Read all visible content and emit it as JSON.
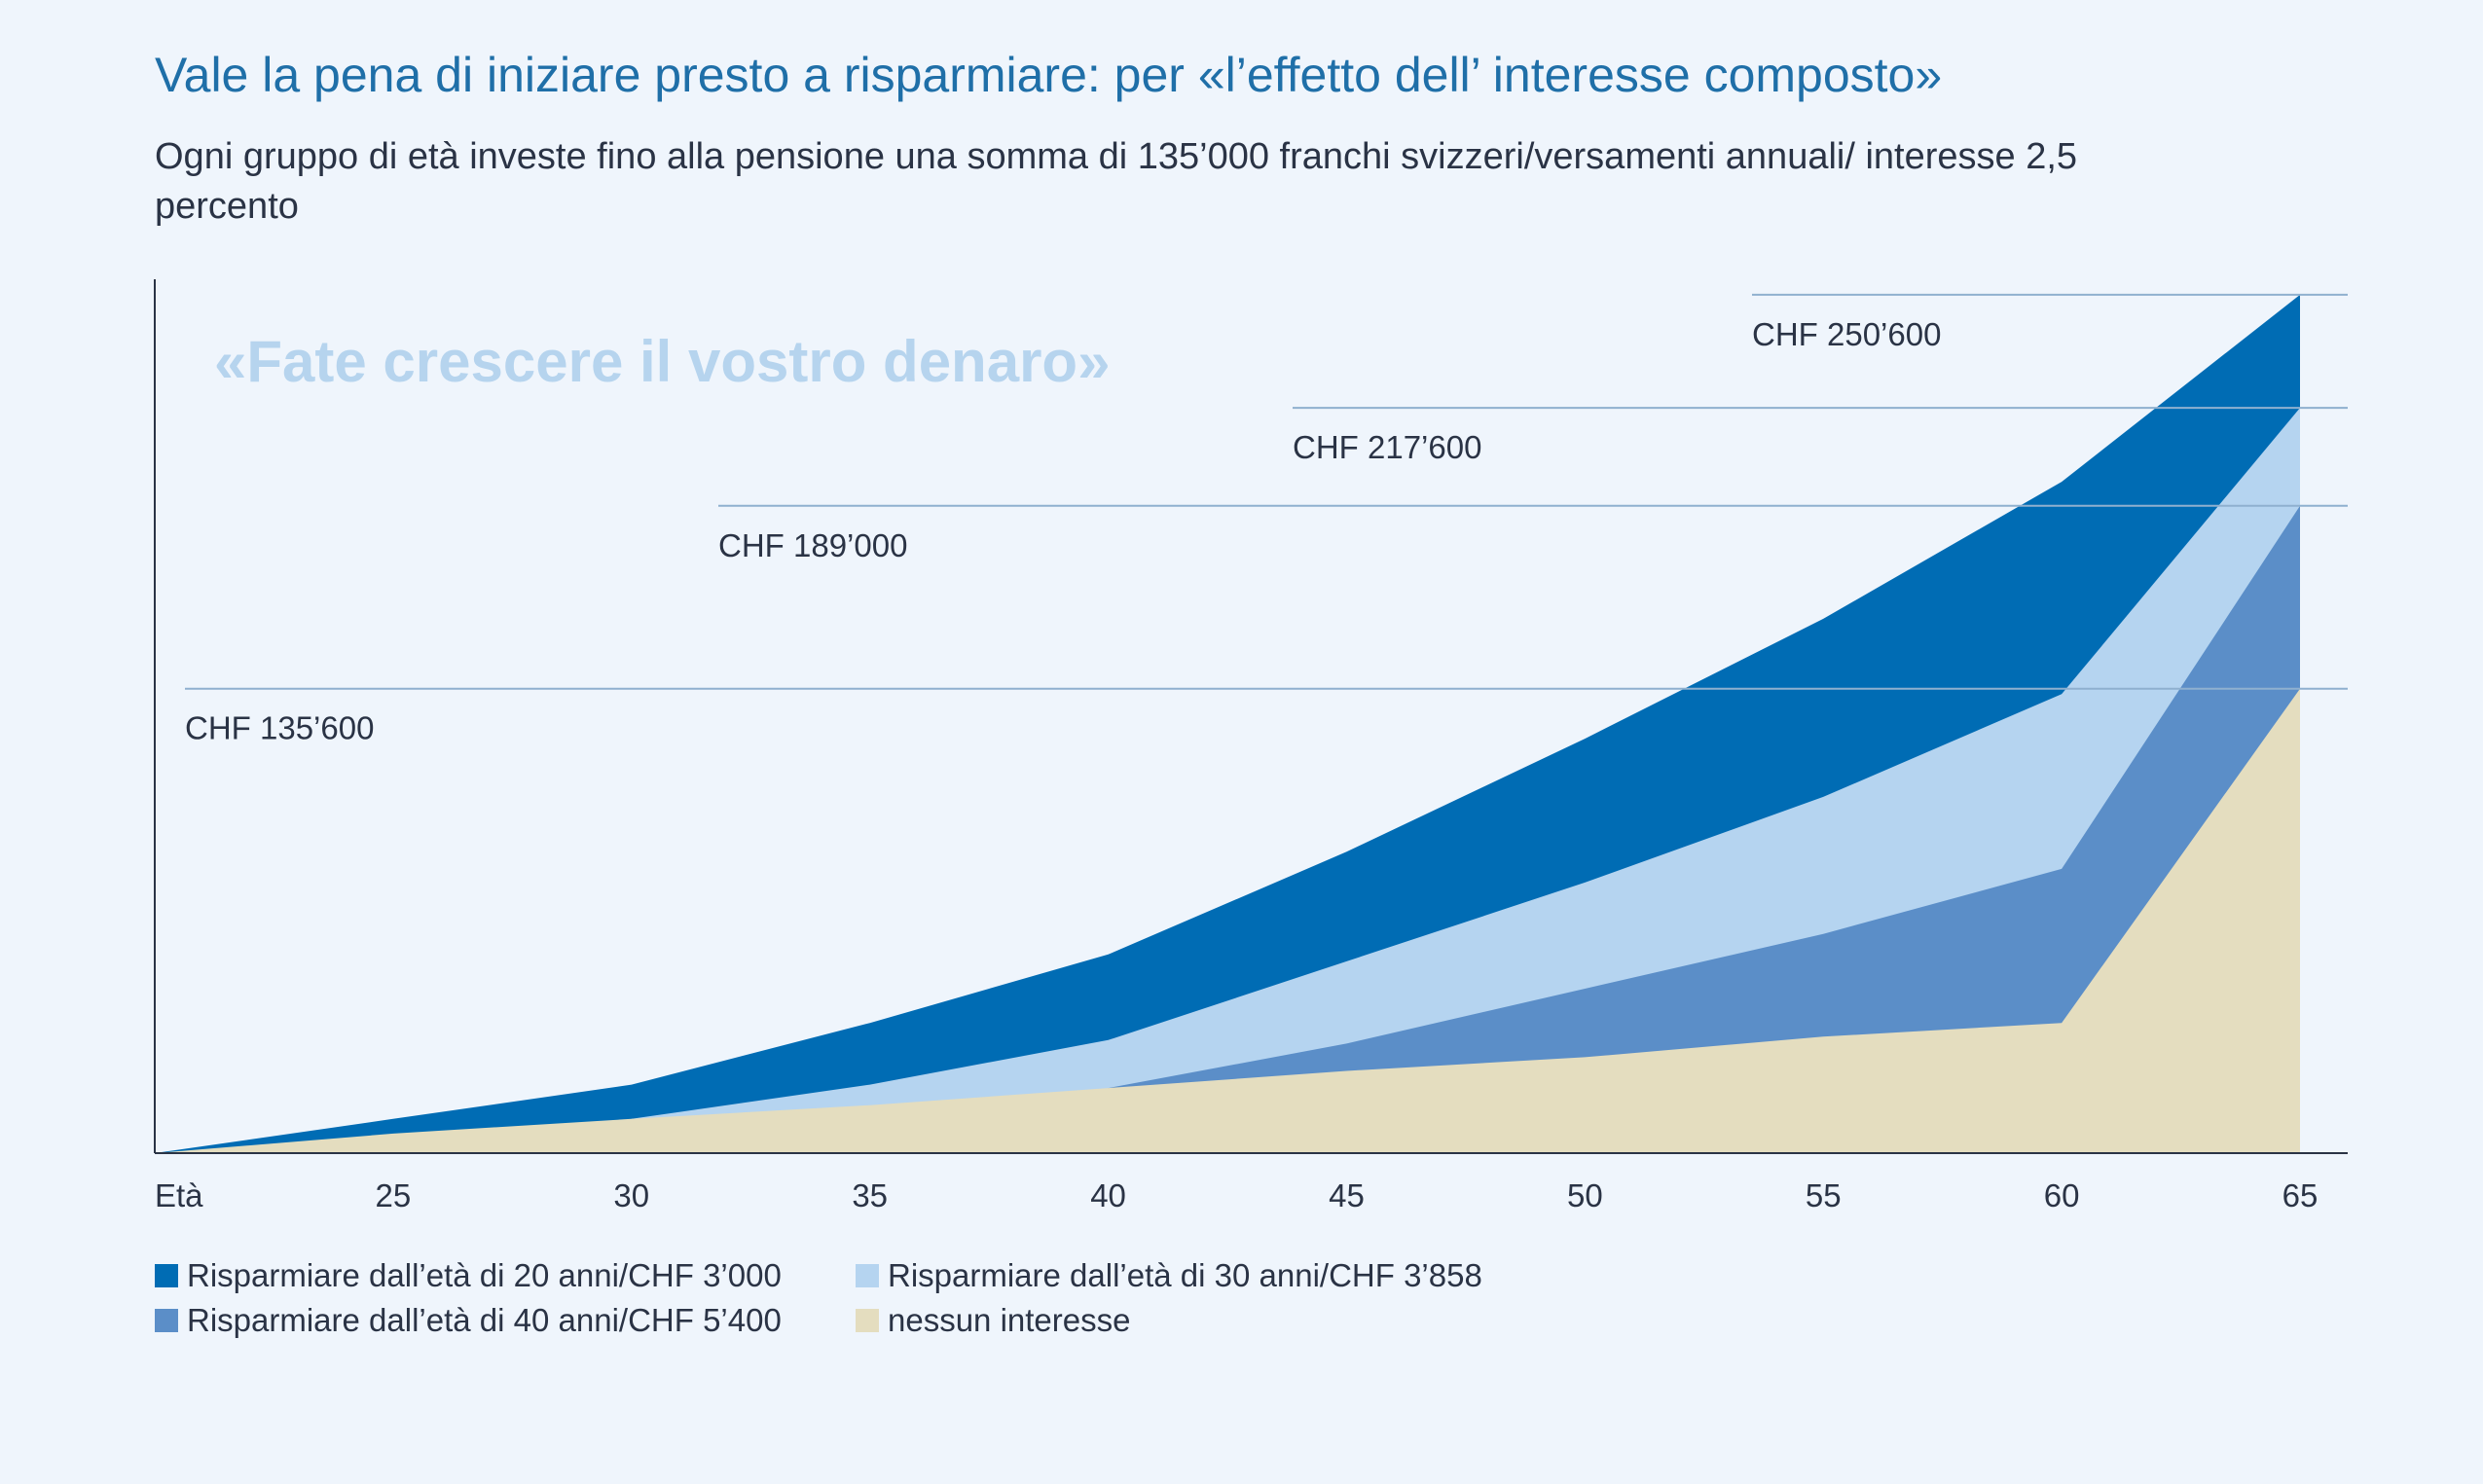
{
  "title": "Vale la pena di iniziare presto a risparmiare: per «l’effetto dell’ interesse composto»",
  "subtitle": "Ogni gruppo di età investe fino alla pensione una somma di 135’000 franchi svizzeri/versamenti annuali/ interesse 2,5 percento",
  "tagline": "«Fate crescere il vostro denaro»",
  "colors": {
    "background": "#eff5fc",
    "axis": "#2a3345",
    "reference_line": "#8fb0cf",
    "tagline": "#b6d4ee",
    "text": "#2a3345",
    "title": "#1f6fa8"
  },
  "chart_data": {
    "type": "area",
    "x_axis_label": "Età",
    "x": [
      20,
      25,
      30,
      35,
      40,
      45,
      50,
      55,
      60,
      65
    ],
    "x_ticks": [
      25,
      30,
      35,
      40,
      45,
      50,
      55,
      60,
      65
    ],
    "xlim": [
      20,
      66
    ],
    "ylim": [
      0,
      252000
    ],
    "grid": false,
    "series": [
      {
        "name": "Risparmiare dall’età di 20 anni/CHF 3’000",
        "color": "#006cb4",
        "start_age": 20,
        "values": [
          0,
          10000,
          20000,
          38000,
          58000,
          88000,
          121000,
          156000,
          196000,
          250600
        ]
      },
      {
        "name": "Risparmiare dall’età di 30 anni/CHF 3’858",
        "color": "#b5d4f0",
        "start_age": 30,
        "values": [
          null,
          null,
          10000,
          20000,
          33000,
          56000,
          79000,
          104000,
          134000,
          217600
        ]
      },
      {
        "name": "Risparmiare dall’età di 40 anni/CHF 5’400",
        "color": "#5b8ec8",
        "start_age": 40,
        "values": [
          null,
          null,
          null,
          null,
          19000,
          32000,
          48000,
          64000,
          83000,
          189000
        ]
      },
      {
        "name": "nessun interesse",
        "color": "#e4ddbf",
        "start_age": 20,
        "values": [
          0,
          5700,
          10000,
          14000,
          19000,
          24000,
          28000,
          34000,
          38000,
          135600
        ]
      }
    ],
    "annotations": [
      {
        "label": "CHF 135’600",
        "value": 135600
      },
      {
        "label": "CHF 189’000",
        "value": 189000
      },
      {
        "label": "CHF 217’600",
        "value": 217600
      },
      {
        "label": "CHF 250’600",
        "value": 250600
      }
    ]
  }
}
